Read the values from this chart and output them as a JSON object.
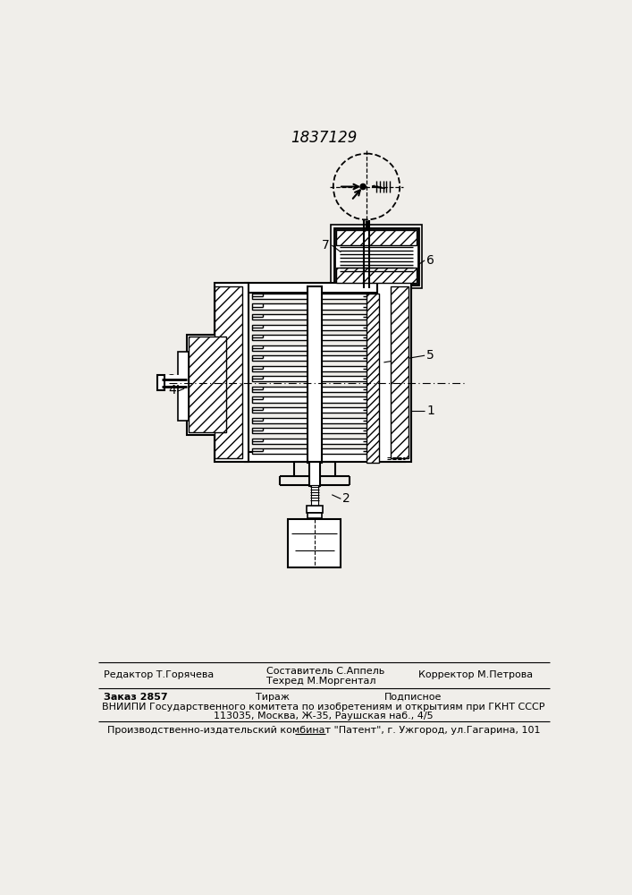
{
  "patent_number": "1837129",
  "bg_color": "#f0eeea",
  "footer": {
    "line1_left": "Редактор Т.Горячева",
    "line1_center_top": "Составитель С.Аппель",
    "line1_center_bot": "Техред М.Моргентал",
    "line1_right": "Корректор М.Петрова",
    "line2_col1": "Заказ 2857",
    "line2_col2": "Тираж",
    "line2_col3": "Подписное",
    "line3": "ВНИИПИ Государственного комитета по изобретениям и открытиям при ГКНТ СССР",
    "line4": "113035, Москва, Ж-35, Раушская наб., 4/5",
    "line5": "Производственно-издательский комбинат \"Патент\", г. Ужгород, ул.Гагарина, 101"
  }
}
